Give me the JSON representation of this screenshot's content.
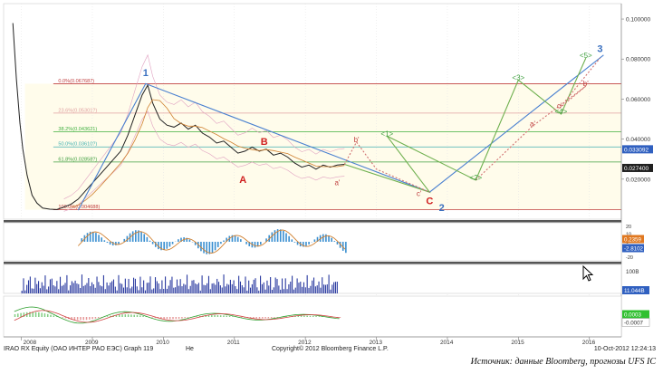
{
  "chart_data": {
    "type": "line",
    "ticker": "IRAO RX Equity (OAO ИНТЕР РАО ЕЭС) Graph 119",
    "x_labels": [
      "2008",
      "2009",
      "2010",
      "2011",
      "2012",
      "2013",
      "2014",
      "2015",
      "2016"
    ],
    "main_panel": {
      "y_ticks": [
        "0.100000",
        "0.080000",
        "0.060000",
        "0.040000",
        "0.020000"
      ],
      "ylim": [
        0.0,
        0.105
      ],
      "current_labels": {
        "ma": "0.033092",
        "last": "0.027400"
      },
      "fib_levels": [
        {
          "label": "0.0%(0.067687)",
          "value": 0.067687,
          "color": "#c04040"
        },
        {
          "label": "23.6%(0.05301?)",
          "value": 0.053,
          "color": "#e0a0a0"
        },
        {
          "label": "38.2%(0.043621)",
          "value": 0.043621,
          "color": "#40b040"
        },
        {
          "label": "50.0%(0.03610?)",
          "value": 0.0361,
          "color": "#40b0b0"
        },
        {
          "label": "61.8%(0.02858?)",
          "value": 0.02858,
          "color": "#40a040"
        },
        {
          "label": "100.0%(0.004688)",
          "value": 0.004688,
          "color": "#c04040"
        }
      ],
      "wave_labels": [
        {
          "text": "1",
          "color": "#3a70c0",
          "t": 2009.75,
          "v": 0.0715
        },
        {
          "text": "A",
          "color": "#d02020",
          "t": 2011.12,
          "v": 0.018
        },
        {
          "text": "B",
          "color": "#d02020",
          "t": 2011.42,
          "v": 0.037
        },
        {
          "text": "C",
          "color": "#d02020",
          "t": 2013.75,
          "v": 0.0075
        },
        {
          "text": "2",
          "color": "#3a70c0",
          "t": 2013.92,
          "v": 0.004
        },
        {
          "text": "3",
          "color": "#3a70c0",
          "t": 2016.15,
          "v": 0.0835
        },
        {
          "text": "b'",
          "color": "#c04040",
          "t": 2012.72,
          "v": 0.0385
        },
        {
          "text": "a'",
          "color": "#c04040",
          "t": 2012.45,
          "v": 0.017
        },
        {
          "text": "c'",
          "color": "#c04040",
          "t": 2013.6,
          "v": 0.0115
        },
        {
          "text": "a'",
          "color": "#c04040",
          "t": 2015.2,
          "v": 0.0465
        },
        {
          "text": "b'",
          "color": "#c04040",
          "t": 2015.95,
          "v": 0.0665
        },
        {
          "text": "c'",
          "color": "#c04040",
          "t": 2015.58,
          "v": 0.0555
        },
        {
          "text": "<1>",
          "color": "#40a040",
          "t": 2013.15,
          "v": 0.0415
        },
        {
          "text": "<2>",
          "color": "#40a040",
          "t": 2014.4,
          "v": 0.0195
        },
        {
          "text": "<3>",
          "color": "#40a040",
          "t": 2015.0,
          "v": 0.0695
        },
        {
          "text": "<4>",
          "color": "#40a040",
          "t": 2015.6,
          "v": 0.0525
        },
        {
          "text": "<5>",
          "color": "#40a040",
          "t": 2015.95,
          "v": 0.0805
        }
      ]
    },
    "price_series": {
      "name": "",
      "t": [
        2007.88,
        2007.93,
        2007.98,
        2008.02,
        2008.08,
        2008.15,
        2008.22,
        2008.3,
        2008.4,
        2008.5,
        2008.6,
        2008.7,
        2008.8,
        2008.9,
        2009.0,
        2009.1,
        2009.2,
        2009.3,
        2009.4,
        2009.5,
        2009.6,
        2009.7,
        2009.78,
        2009.85,
        2009.95,
        2010.05,
        2010.15,
        2010.25,
        2010.35,
        2010.45,
        2010.55,
        2010.65,
        2010.75,
        2010.85,
        2010.95,
        2011.05,
        2011.15,
        2011.25,
        2011.35,
        2011.45,
        2011.55,
        2011.65,
        2011.75,
        2011.85,
        2011.95,
        2012.05,
        2012.15,
        2012.25,
        2012.35,
        2012.45,
        2012.55
      ],
      "v": [
        0.098,
        0.07,
        0.048,
        0.035,
        0.022,
        0.012,
        0.008,
        0.0055,
        0.005,
        0.0048,
        0.006,
        0.0075,
        0.01,
        0.014,
        0.018,
        0.022,
        0.026,
        0.03,
        0.034,
        0.042,
        0.052,
        0.062,
        0.067,
        0.058,
        0.05,
        0.047,
        0.046,
        0.048,
        0.045,
        0.047,
        0.043,
        0.041,
        0.038,
        0.039,
        0.036,
        0.033,
        0.034,
        0.036,
        0.034,
        0.035,
        0.032,
        0.033,
        0.031,
        0.028,
        0.026,
        0.027,
        0.025,
        0.027,
        0.026,
        0.027,
        0.0274
      ]
    },
    "forecast_paths": [
      {
        "color": "#4a80d0",
        "t": [
          2008.8,
          2009.75,
          2013.75,
          2016.2
        ],
        "v": [
          0.0045,
          0.0677,
          0.0135,
          0.082
        ]
      },
      {
        "color": "#6fb04f",
        "t": [
          2012.55,
          2013.75,
          2013.15,
          2014.4,
          2015.0,
          2015.6,
          2015.95
        ],
        "v": [
          0.0274,
          0.0135,
          0.0415,
          0.0195,
          0.0695,
          0.0525,
          0.0805
        ]
      },
      {
        "color": "#d07070",
        "t": [
          2012.55,
          2012.72,
          2013.0,
          2013.75
        ],
        "v": [
          0.0274,
          0.0385,
          0.025,
          0.0135
        ],
        "dashed": true
      },
      {
        "color": "#d07070",
        "t": [
          2014.4,
          2015.2,
          2015.95,
          2015.58,
          2016.15
        ],
        "v": [
          0.0195,
          0.0465,
          0.0665,
          0.0555,
          0.0805
        ],
        "dashed": true
      }
    ],
    "sub_panels": [
      {
        "name": "oscillator",
        "ticks": [
          "20",
          "10",
          "0",
          "-10",
          "-20"
        ],
        "labels": [
          "0.2359",
          "-2.8102"
        ]
      },
      {
        "name": "volume",
        "ticks": [
          "100B"
        ],
        "labels": [
          "11.044B"
        ]
      },
      {
        "name": "macd",
        "ticks": [],
        "labels": [
          "0.0003",
          "-0.0007"
        ]
      }
    ]
  },
  "footer": {
    "ticker_text": "IRAO RX Equity (OAO ИНТЕР РАО ЕЭС) Graph 119",
    "mid_text": "Не",
    "copyright": "Copyright© 2012 Bloomberg Finance L.P.",
    "date": "10-Oct-2012 12:24:13",
    "source": "Источник: данные Bloomberg, прогнозы UFS IC"
  },
  "colors": {
    "ma_label_bg": "#3060c0",
    "last_label_bg": "#202020",
    "orange_label_bg": "#e07820",
    "green_label_bg": "#30c030"
  }
}
